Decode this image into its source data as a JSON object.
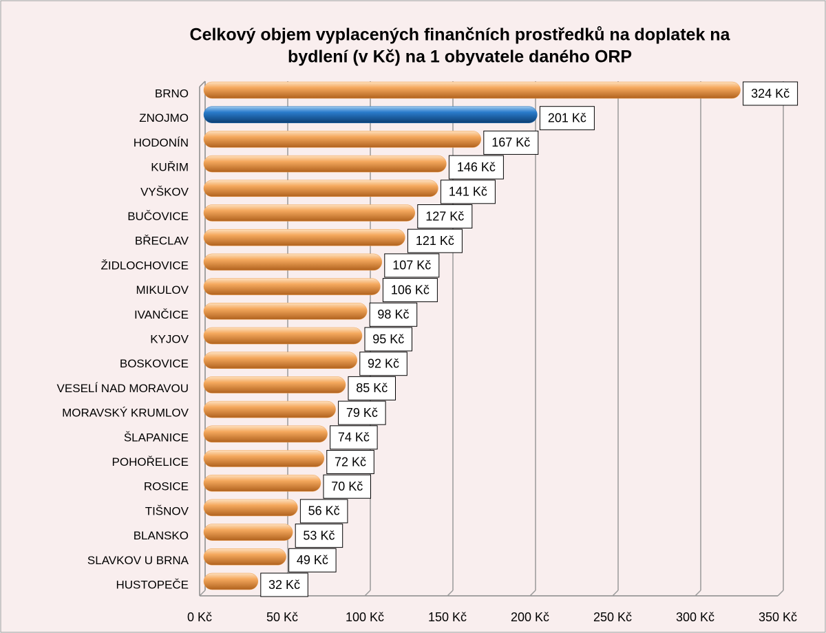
{
  "chart_data": {
    "type": "bar",
    "orientation": "horizontal",
    "title": [
      "Celkový objem vyplacených finančních prostředků na doplatek na",
      "bydlení (v Kč) na 1 obyvatele daného ORP"
    ],
    "categories": [
      "BRNO",
      "ZNOJMO",
      "HODONÍN",
      "KUŘIM",
      "VYŠKOV",
      "BUČOVICE",
      "BŘECLAV",
      "ŽIDLOCHOVICE",
      "MIKULOV",
      "IVANČICE",
      "KYJOV",
      "BOSKOVICE",
      "VESELÍ NAD MORAVOU",
      "MORAVSKÝ KRUMLOV",
      "ŠLAPANICE",
      "POHOŘELICE",
      "ROSICE",
      "TIŠNOV",
      "BLANSKO",
      "SLAVKOV U BRNA",
      "HUSTOPEČE"
    ],
    "values": [
      324,
      201,
      167,
      146,
      141,
      127,
      121,
      107,
      106,
      98,
      95,
      92,
      85,
      79,
      74,
      72,
      70,
      56,
      53,
      49,
      32
    ],
    "value_labels": [
      "324 Kč",
      "201 Kč",
      "167 Kč",
      "146 Kč",
      "141 Kč",
      "127 Kč",
      "121 Kč",
      "107 Kč",
      "106 Kč",
      "98 Kč",
      "95 Kč",
      "92 Kč",
      "85 Kč",
      "79 Kč",
      "74 Kč",
      "72 Kč",
      "70 Kč",
      "56 Kč",
      "53 Kč",
      "49 Kč",
      "32 Kč"
    ],
    "colors": [
      "#f0a050",
      "#1f6fb8",
      "#f0a050",
      "#f0a050",
      "#f0a050",
      "#f0a050",
      "#f0a050",
      "#f0a050",
      "#f0a050",
      "#f0a050",
      "#f0a050",
      "#f0a050",
      "#f0a050",
      "#f0a050",
      "#f0a050",
      "#f0a050",
      "#f0a050",
      "#f0a050",
      "#f0a050",
      "#f0a050",
      "#f0a050"
    ],
    "xlim": [
      0,
      350
    ],
    "xticks": [
      {
        "value": 0,
        "label": "0 Kč"
      },
      {
        "value": 50,
        "label": "50 Kč"
      },
      {
        "value": 100,
        "label": "100 Kč"
      },
      {
        "value": 150,
        "label": "150 Kč"
      },
      {
        "value": 200,
        "label": "200 Kč"
      },
      {
        "value": 250,
        "label": "250 Kč"
      },
      {
        "value": 300,
        "label": "300 Kč"
      },
      {
        "value": 350,
        "label": "350 Kč"
      }
    ],
    "grid": true
  }
}
